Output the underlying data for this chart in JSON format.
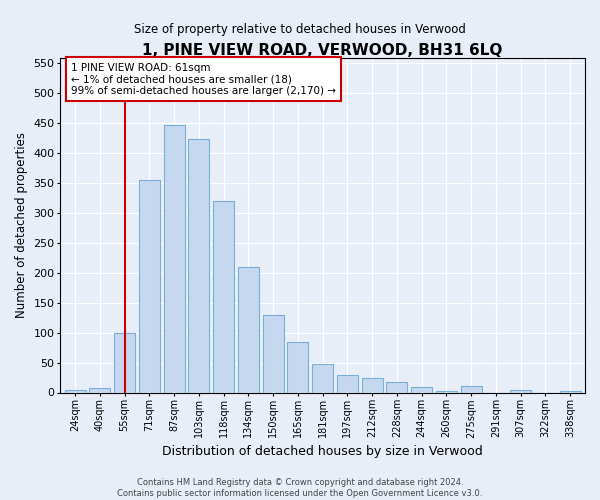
{
  "title": "1, PINE VIEW ROAD, VERWOOD, BH31 6LQ",
  "subtitle": "Size of property relative to detached houses in Verwood",
  "xlabel": "Distribution of detached houses by size in Verwood",
  "ylabel": "Number of detached properties",
  "bar_labels": [
    "24sqm",
    "40sqm",
    "55sqm",
    "71sqm",
    "87sqm",
    "103sqm",
    "118sqm",
    "134sqm",
    "150sqm",
    "165sqm",
    "181sqm",
    "197sqm",
    "212sqm",
    "228sqm",
    "244sqm",
    "260sqm",
    "275sqm",
    "291sqm",
    "307sqm",
    "322sqm",
    "338sqm"
  ],
  "bar_values": [
    5,
    7,
    100,
    355,
    448,
    424,
    320,
    209,
    130,
    85,
    48,
    29,
    25,
    18,
    10,
    3,
    11,
    0,
    5,
    0,
    3
  ],
  "bar_color": "#c5d8f0",
  "bar_edge_color": "#7aaed4",
  "ylim": [
    0,
    560
  ],
  "yticks": [
    0,
    50,
    100,
    150,
    200,
    250,
    300,
    350,
    400,
    450,
    500,
    550
  ],
  "vline_x_index": 2,
  "vline_color": "#cc0000",
  "annotation_line1": "1 PINE VIEW ROAD: 61sqm",
  "annotation_line2": "← 1% of detached houses are smaller (18)",
  "annotation_line3": "99% of semi-detached houses are larger (2,170) →",
  "annotation_box_color": "#ffffff",
  "annotation_box_edge_color": "#cc0000",
  "footnote": "Contains HM Land Registry data © Crown copyright and database right 2024.\nContains public sector information licensed under the Open Government Licence v3.0.",
  "bg_color": "#e8eef8",
  "plot_bg_color": "#e8eef8",
  "grid_color": "#ffffff"
}
